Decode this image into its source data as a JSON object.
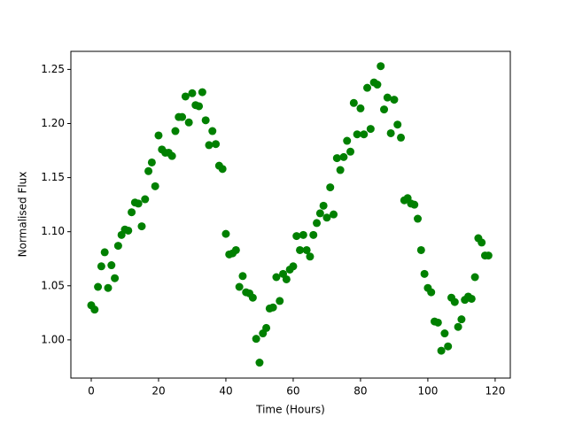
{
  "chart_data": {
    "type": "scatter",
    "x_label": "Time (Hours)",
    "y_label": "Normalised Flux",
    "color": "#008000",
    "x": [
      0,
      1,
      2,
      3,
      4,
      5,
      6,
      7,
      8,
      9,
      10,
      11,
      12,
      13,
      14,
      15,
      16,
      17,
      18,
      19,
      20,
      21,
      22,
      23,
      24,
      25,
      26,
      27,
      28,
      29,
      30,
      31,
      32,
      33,
      34,
      35,
      36,
      37,
      38,
      39,
      40,
      41,
      42,
      43,
      44,
      45,
      46,
      47,
      48,
      49,
      50,
      51,
      52,
      53,
      54,
      55,
      56,
      57,
      58,
      59,
      60,
      61,
      62,
      63,
      64,
      65,
      66,
      67,
      68,
      69,
      70,
      71,
      72,
      73,
      74,
      75,
      76,
      77,
      78,
      79,
      80,
      81,
      82,
      83,
      84,
      85,
      86,
      87,
      88,
      89,
      90,
      91,
      92,
      93,
      94,
      95,
      96,
      97,
      98,
      99,
      100,
      101,
      102,
      103,
      104,
      105,
      106,
      107,
      108,
      109,
      110,
      111,
      112,
      113,
      114,
      115,
      116,
      117,
      118
    ],
    "values": [
      1.032,
      1.028,
      1.049,
      1.068,
      1.081,
      1.048,
      1.069,
      1.057,
      1.087,
      1.097,
      1.102,
      1.101,
      1.118,
      1.127,
      1.126,
      1.105,
      1.13,
      1.156,
      1.164,
      1.142,
      1.189,
      1.176,
      1.173,
      1.173,
      1.17,
      1.193,
      1.206,
      1.206,
      1.225,
      1.201,
      1.228,
      1.217,
      1.216,
      1.229,
      1.203,
      1.18,
      1.193,
      1.181,
      1.161,
      1.158,
      1.098,
      1.079,
      1.08,
      1.083,
      1.049,
      1.059,
      1.044,
      1.043,
      1.039,
      1.001,
      0.979,
      1.006,
      1.011,
      1.029,
      1.03,
      1.058,
      1.036,
      1.061,
      1.056,
      1.065,
      1.068,
      1.096,
      1.083,
      1.097,
      1.083,
      1.077,
      1.097,
      1.108,
      1.117,
      1.124,
      1.113,
      1.141,
      1.116,
      1.168,
      1.157,
      1.169,
      1.184,
      1.174,
      1.219,
      1.19,
      1.214,
      1.19,
      1.233,
      1.195,
      1.238,
      1.236,
      1.253,
      1.213,
      1.224,
      1.191,
      1.222,
      1.199,
      1.187,
      1.129,
      1.131,
      1.126,
      1.125,
      1.112,
      1.083,
      1.061,
      1.048,
      1.044,
      1.017,
      1.016,
      0.99,
      1.006,
      0.994,
      1.039,
      1.035,
      1.012,
      1.019,
      1.037,
      1.04,
      1.038,
      1.058,
      1.094,
      1.09,
      1.078,
      1.078
    ],
    "xlim": [
      -6.05,
      124.5
    ],
    "ylim": [
      0.9647,
      1.2667
    ],
    "xticks": [
      0,
      20,
      40,
      60,
      80,
      100,
      120
    ],
    "yticks": [
      {
        "value": 1.0,
        "label": "1.00"
      },
      {
        "value": 1.05,
        "label": "1.05"
      },
      {
        "value": 1.1,
        "label": "1.10"
      },
      {
        "value": 1.15,
        "label": "1.15"
      },
      {
        "value": 1.2,
        "label": "1.20"
      },
      {
        "value": 1.25,
        "label": "1.25"
      }
    ],
    "grid": false
  }
}
